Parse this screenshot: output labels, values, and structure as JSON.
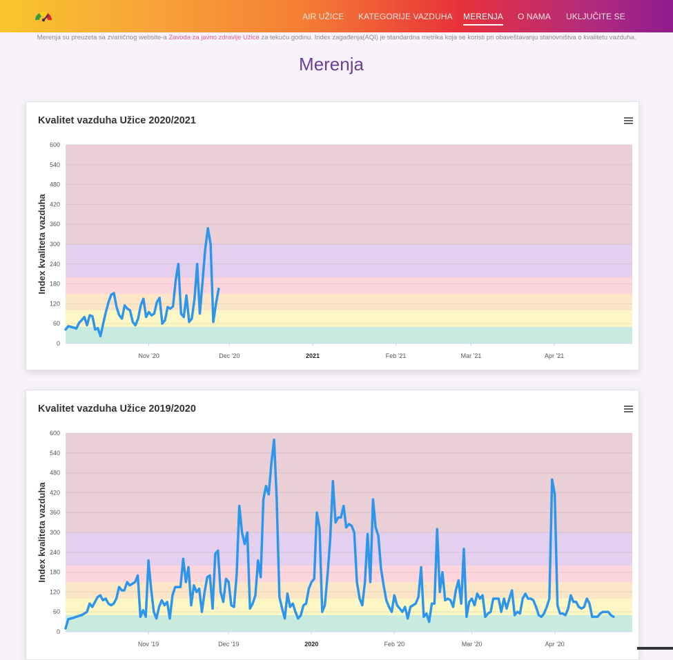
{
  "nav": {
    "items": [
      {
        "label": "AIR UŽICE"
      },
      {
        "label": "KATEGORIJE VAZDUHA"
      },
      {
        "label": "MERENJA",
        "active": true
      },
      {
        "label": "O NAMA"
      },
      {
        "label": "UKLJUČITE SE"
      }
    ]
  },
  "intro": {
    "before_link": "Merenja su preuzeta sa zvaničnog website-a ",
    "link": "Zavoda za javno zdravlje Užice",
    "after_link": " za tekuću godinu. Index zagađenja(AQI) je standardna metrika koja se koristi pri obaveštavanju stanovništva o kvalitetu vazduha."
  },
  "page_title": "Merenja",
  "colors": {
    "line": "#2e96ea",
    "band_good": "#c9ebdf",
    "band_moderate": "#fdf7c5",
    "band_sensitive": "#fde6c8",
    "band_unhealthy": "#fcd6dc",
    "band_very_unhealthy": "#e4d0ee",
    "band_hazardous": "#ebcfd6"
  },
  "chart_data": [
    {
      "type": "line",
      "title": "Kvalitet vazduha Užice 2020/2021",
      "ylabel": "Index kvaliteta vazduha",
      "xlabel": "",
      "ylim": [
        0,
        600
      ],
      "yticks": [
        "0",
        "60",
        "120",
        "180",
        "240",
        "300",
        "360",
        "420",
        "480",
        "540",
        "600"
      ],
      "xticks": [
        {
          "label": "Nov '20",
          "date": "2020-11-01",
          "bold": false
        },
        {
          "label": "Dec '20",
          "date": "2020-12-01",
          "bold": false
        },
        {
          "label": "2021",
          "date": "2021-01-01",
          "bold": true
        },
        {
          "label": "Feb '21",
          "date": "2021-02-01",
          "bold": false
        },
        {
          "label": "Mar '21",
          "date": "2021-03-01",
          "bold": false
        },
        {
          "label": "Apr '21",
          "date": "2021-04-01",
          "bold": false
        }
      ],
      "x_range": [
        "2020-10-01",
        "2021-04-30"
      ],
      "bands": [
        [
          0,
          50
        ],
        [
          50,
          100
        ],
        [
          100,
          150
        ],
        [
          150,
          200
        ],
        [
          200,
          300
        ],
        [
          300,
          600
        ]
      ],
      "grid": true,
      "series": [
        {
          "start": "2020-10-01",
          "values": [
            42,
            52,
            50,
            48,
            45,
            62,
            70,
            80,
            55,
            85,
            82,
            42,
            46,
            22,
            60,
            95,
            125,
            147,
            152,
            110,
            85,
            75,
            115,
            105,
            100,
            65,
            55,
            75,
            115,
            135,
            80,
            95,
            85,
            90,
            125,
            138,
            60,
            70,
            110,
            105,
            112,
            190,
            240,
            90,
            80,
            145,
            65,
            75,
            135,
            240,
            90,
            185,
            285,
            348,
            300,
            65,
            120,
            165
          ]
        }
      ]
    },
    {
      "type": "line",
      "title": "Kvalitet vazduha Užice 2019/2020",
      "ylabel": "Index kvaliteta vazduha",
      "xlabel": "",
      "ylim": [
        0,
        600
      ],
      "yticks": [
        "0",
        "60",
        "120",
        "180",
        "240",
        "300",
        "360",
        "420",
        "480",
        "540",
        "600"
      ],
      "xticks": [
        {
          "label": "Nov '19",
          "date": "2019-11-01",
          "bold": false
        },
        {
          "label": "Dec '19",
          "date": "2019-12-01",
          "bold": false
        },
        {
          "label": "2020",
          "date": "2020-01-01",
          "bold": true
        },
        {
          "label": "Feb '20",
          "date": "2020-02-01",
          "bold": false
        },
        {
          "label": "Mar '20",
          "date": "2020-03-01",
          "bold": false
        },
        {
          "label": "Apr '20",
          "date": "2020-04-01",
          "bold": false
        }
      ],
      "x_range": [
        "2019-10-01",
        "2020-04-30"
      ],
      "bands": [
        [
          0,
          50
        ],
        [
          50,
          100
        ],
        [
          100,
          150
        ],
        [
          150,
          200
        ],
        [
          200,
          300
        ],
        [
          300,
          600
        ]
      ],
      "grid": true,
      "series": [
        {
          "start": "2019-10-01",
          "values": [
            10,
            38,
            40,
            42,
            45,
            48,
            50,
            55,
            60,
            85,
            75,
            90,
            105,
            110,
            95,
            100,
            85,
            80,
            85,
            100,
            135,
            125,
            125,
            150,
            140,
            145,
            150,
            170,
            45,
            65,
            45,
            215,
            130,
            60,
            40,
            75,
            95,
            80,
            90,
            40,
            110,
            135,
            135,
            135,
            220,
            150,
            195,
            80,
            140,
            120,
            130,
            60,
            120,
            165,
            170,
            70,
            235,
            245,
            120,
            90,
            160,
            150,
            80,
            75,
            170,
            380,
            300,
            265,
            300,
            70,
            85,
            110,
            215,
            165,
            400,
            440,
            415,
            510,
            580,
            400,
            105,
            70,
            40,
            115,
            75,
            85,
            60,
            40,
            50,
            80,
            85,
            130,
            150,
            160,
            360,
            315,
            60,
            80,
            170,
            280,
            455,
            330,
            345,
            345,
            380,
            315,
            325,
            320,
            300,
            150,
            100,
            80,
            150,
            295,
            150,
            400,
            315,
            290,
            190,
            140,
            95,
            75,
            60,
            110,
            80,
            70,
            60,
            75,
            40,
            75,
            80,
            85,
            105,
            195,
            45,
            55,
            30,
            85,
            85,
            310,
            120,
            180,
            95,
            100,
            95,
            75,
            125,
            155,
            85,
            250,
            45,
            90,
            100,
            80,
            115,
            100,
            110,
            45,
            55,
            60,
            100,
            100,
            100,
            60,
            100,
            70,
            100,
            125,
            50,
            60,
            55,
            100,
            115,
            100,
            100,
            95,
            75,
            50,
            45,
            55,
            75,
            100,
            460,
            415,
            80,
            55,
            55,
            50,
            70,
            110,
            90,
            90,
            75,
            70,
            75,
            100,
            85,
            45,
            45,
            45,
            55,
            60,
            60,
            60,
            50,
            45
          ]
        }
      ]
    }
  ]
}
